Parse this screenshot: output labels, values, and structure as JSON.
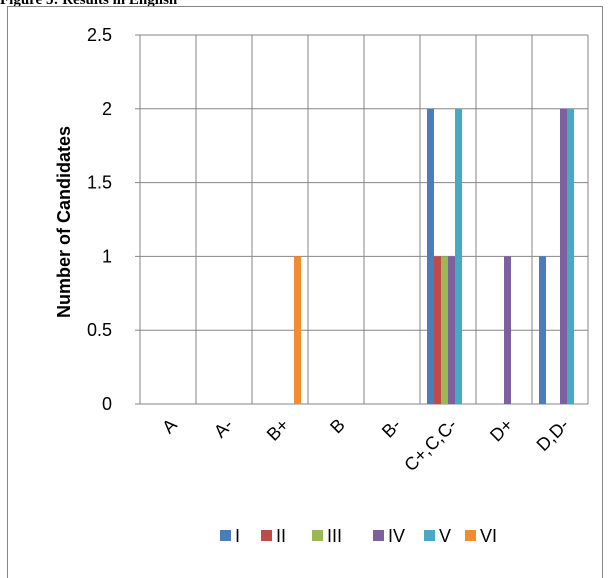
{
  "caption": "Figure 5: Results in English",
  "chart_data": {
    "type": "bar",
    "title": "",
    "xlabel": "",
    "ylabel": "Number of Candidates",
    "categories": [
      "A",
      "A-",
      "B+",
      "B",
      "B-",
      "C+,C,C-",
      "D+",
      "D,D-"
    ],
    "ylim": [
      0,
      2.5
    ],
    "yticks": [
      "0",
      "0.5",
      "1",
      "1.5",
      "2",
      "2.5"
    ],
    "grid": true,
    "legend_position": "bottom",
    "series": [
      {
        "name": "I",
        "color": "#4a7ebb",
        "values": [
          0,
          0,
          0,
          0,
          0,
          2,
          0,
          1
        ]
      },
      {
        "name": "II",
        "color": "#be4b48",
        "values": [
          0,
          0,
          0,
          0,
          0,
          1,
          0,
          0
        ]
      },
      {
        "name": "III",
        "color": "#98b954",
        "values": [
          0,
          0,
          0,
          0,
          0,
          1,
          0,
          0
        ]
      },
      {
        "name": "IV",
        "color": "#7d60a0",
        "values": [
          0,
          0,
          0,
          0,
          0,
          1,
          1,
          2
        ]
      },
      {
        "name": "V",
        "color": "#46aac5",
        "values": [
          0,
          0,
          0,
          0,
          0,
          2,
          0,
          2
        ]
      },
      {
        "name": "VI",
        "color": "#f38b31",
        "values": [
          0,
          0,
          1,
          0,
          0,
          0,
          0,
          0
        ]
      }
    ]
  }
}
